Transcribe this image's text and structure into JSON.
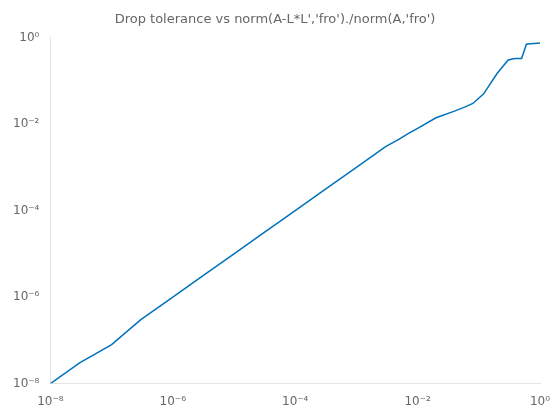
{
  "chart_data": {
    "type": "line",
    "title": "Drop tolerance vs norm(A-L*L','fro')./norm(A,'fro')",
    "log": true,
    "grid": false,
    "color": "#0072BD",
    "x": [
      1e-08,
      3e-08,
      1e-07,
      3e-07,
      1e-06,
      3e-06,
      1e-05,
      3e-05,
      0.0001,
      0.0003,
      0.001,
      0.003,
      0.005,
      0.007,
      0.01,
      0.02,
      0.04,
      0.06,
      0.08,
      0.12,
      0.2,
      0.3,
      0.35,
      0.4,
      0.5,
      0.6,
      0.7,
      0.8,
      0.9,
      1.0
    ],
    "values": [
      1e-08,
      3e-08,
      8e-08,
      3e-07,
      1e-06,
      3e-06,
      1e-05,
      3e-05,
      0.0001,
      0.0003,
      0.001,
      0.003,
      0.0045,
      0.006,
      0.008,
      0.014,
      0.02,
      0.025,
      0.03,
      0.05,
      0.15,
      0.3,
      0.32,
      0.33,
      0.33,
      0.7,
      0.72,
      0.73,
      0.74,
      0.75
    ],
    "xlim": [
      1e-08,
      1
    ],
    "ylim": [
      1e-08,
      1
    ],
    "xticks": [
      {
        "value": 1e-08,
        "label": "10⁻⁸"
      },
      {
        "value": 1e-06,
        "label": "10⁻⁶"
      },
      {
        "value": 0.0001,
        "label": "10⁻⁴"
      },
      {
        "value": 0.01,
        "label": "10⁻²"
      },
      {
        "value": 1,
        "label": "10⁰"
      }
    ],
    "yticks": [
      {
        "value": 1e-08,
        "label": "10⁻⁸"
      },
      {
        "value": 1e-06,
        "label": "10⁻⁶"
      },
      {
        "value": 0.0001,
        "label": "10⁻⁴"
      },
      {
        "value": 0.01,
        "label": "10⁻²"
      },
      {
        "value": 1,
        "label": "10⁰"
      }
    ]
  }
}
